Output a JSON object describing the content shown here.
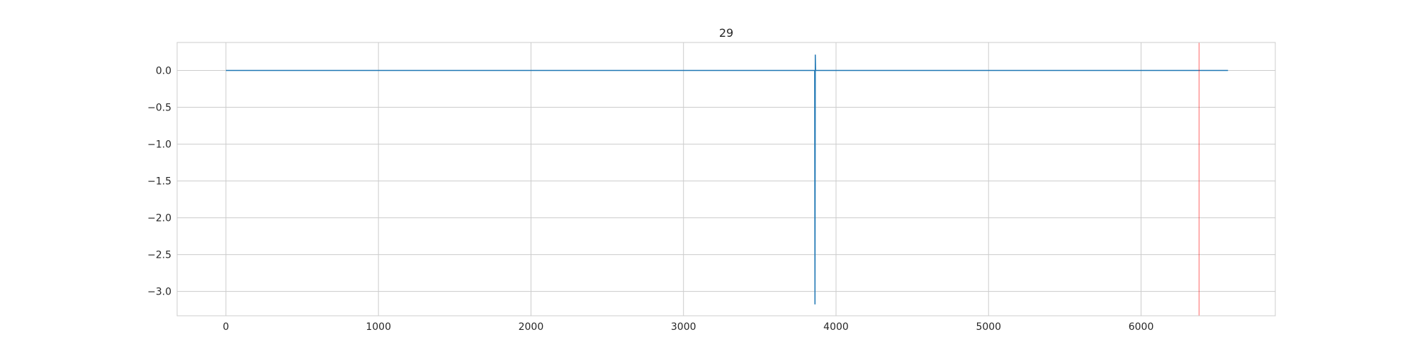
{
  "chart_data": {
    "type": "line",
    "title": "29",
    "xlabel": "",
    "ylabel": "",
    "xlim": [
      -320,
      6880
    ],
    "ylim": [
      -3.33,
      0.38
    ],
    "xticks": [
      0,
      1000,
      2000,
      3000,
      4000,
      5000,
      6000
    ],
    "xtick_labels": [
      "0",
      "1000",
      "2000",
      "3000",
      "4000",
      "5000",
      "6000"
    ],
    "yticks": [
      0.0,
      -0.5,
      -1.0,
      -1.5,
      -2.0,
      -2.5,
      -3.0
    ],
    "ytick_labels": [
      "0.0",
      "−0.5",
      "−1.0",
      "−1.5",
      "−2.0",
      "−2.5",
      "−3.0"
    ],
    "grid": true,
    "series": [
      {
        "color": "#1f77b4",
        "x": [
          0,
          3860,
          3862,
          3864,
          3866,
          3868,
          6570
        ],
        "y": [
          0.0,
          0.0,
          -3.17,
          0.21,
          0.0,
          0.0,
          0.0
        ]
      }
    ],
    "vlines": [
      {
        "x": 6380,
        "color": "#ff0000"
      }
    ]
  }
}
